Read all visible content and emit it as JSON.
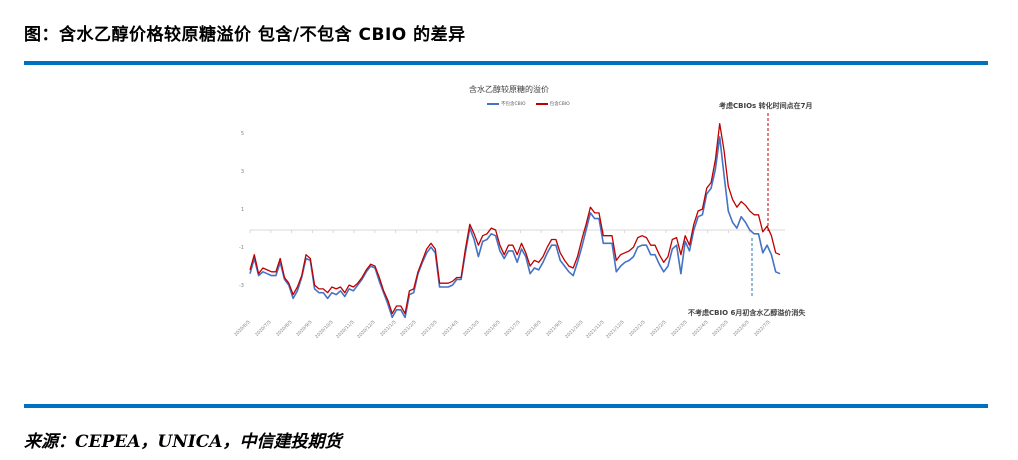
{
  "figure": {
    "title": "图：含水乙醇价格较原糖溢价  包含/不包含 CBIO 的差异",
    "source": "来源：CEPEA，UNICA，中信建投期货",
    "accent_color": "#0070c0"
  },
  "chart_data": {
    "type": "line",
    "title": "含水乙醇较原糖的溢价",
    "xlabel": "",
    "ylabel": "",
    "ylim": [
      -4.5,
      6
    ],
    "y_ticks": [
      "5",
      "3",
      "1",
      "-1",
      "-3"
    ],
    "y_tick_values": [
      5,
      3,
      1,
      -1,
      -3
    ],
    "grid": false,
    "legend_position": "top",
    "x_tick_labels": [
      "2020/6/5",
      "2020/7/5",
      "2020/8/5",
      "2020/9/5",
      "2020/10/5",
      "2020/11/5",
      "2020/12/5",
      "2021/1/5",
      "2021/2/5",
      "2021/3/5",
      "2021/4/5",
      "2021/5/5",
      "2021/6/5",
      "2021/7/5",
      "2021/8/5",
      "2021/9/5",
      "2021/10/5",
      "2021/11/5",
      "2021/12/5",
      "2022/1/5",
      "2022/2/5",
      "2022/3/5",
      "2022/4/5",
      "2022/5/5",
      "2022/6/5",
      "2022/7/5"
    ],
    "series": [
      {
        "name": "不包含CBIO",
        "color": "#4472c4",
        "values": [
          -2.3,
          -1.5,
          -2.4,
          -2.2,
          -2.3,
          -2.4,
          -2.4,
          -1.7,
          -2.6,
          -2.9,
          -3.6,
          -3.2,
          -2.5,
          -1.5,
          -1.6,
          -3.1,
          -3.3,
          -3.3,
          -3.6,
          -3.3,
          -3.4,
          -3.2,
          -3.5,
          -3.1,
          -3.2,
          -2.9,
          -2.6,
          -2.2,
          -1.9,
          -2.0,
          -2.7,
          -3.3,
          -3.9,
          -4.6,
          -4.2,
          -4.2,
          -4.6,
          -3.4,
          -3.3,
          -2.3,
          -1.7,
          -1.2,
          -0.9,
          -1.2,
          -3.0,
          -3.0,
          -3.0,
          -2.9,
          -2.6,
          -2.6,
          -1.2,
          0.1,
          -0.5,
          -1.4,
          -0.6,
          -0.5,
          -0.2,
          -0.3,
          -1.1,
          -1.5,
          -1.1,
          -1.1,
          -1.7,
          -1.0,
          -1.4,
          -2.3,
          -2.0,
          -2.1,
          -1.7,
          -1.2,
          -0.8,
          -0.8,
          -1.6,
          -1.9,
          -2.2,
          -2.4,
          -1.7,
          -0.9,
          0.0,
          0.9,
          0.6,
          0.6,
          -0.7,
          -0.7,
          -0.7,
          -2.2,
          -1.9,
          -1.7,
          -1.6,
          -1.4,
          -0.9,
          -0.8,
          -0.8,
          -1.3,
          -1.3,
          -1.8,
          -2.2,
          -1.9,
          -1.0,
          -0.8,
          -2.3,
          -0.6,
          -1.1,
          0.0,
          0.7,
          0.8,
          1.9,
          2.2,
          3.2,
          4.9,
          2.9,
          1.0,
          0.4,
          0.1,
          0.7,
          0.4,
          0.0,
          -0.2,
          -0.2,
          -1.2,
          -0.8,
          -1.3,
          -2.2,
          -2.3
        ]
      },
      {
        "name": "包含CBIO",
        "color": "#c00000",
        "values": [
          -2.1,
          -1.3,
          -2.3,
          -2.0,
          -2.1,
          -2.2,
          -2.2,
          -1.5,
          -2.5,
          -2.8,
          -3.4,
          -3.0,
          -2.4,
          -1.3,
          -1.5,
          -2.9,
          -3.1,
          -3.1,
          -3.3,
          -3.0,
          -3.1,
          -3.0,
          -3.3,
          -2.9,
          -3.0,
          -2.8,
          -2.5,
          -2.1,
          -1.8,
          -1.9,
          -2.5,
          -3.2,
          -3.7,
          -4.4,
          -4.0,
          -4.0,
          -4.4,
          -3.2,
          -3.1,
          -2.2,
          -1.6,
          -1.0,
          -0.7,
          -1.0,
          -2.8,
          -2.8,
          -2.8,
          -2.7,
          -2.5,
          -2.5,
          -1.0,
          0.3,
          -0.2,
          -0.8,
          -0.3,
          -0.2,
          0.1,
          0.0,
          -0.8,
          -1.3,
          -0.8,
          -0.8,
          -1.3,
          -0.7,
          -1.2,
          -1.9,
          -1.6,
          -1.7,
          -1.4,
          -0.9,
          -0.5,
          -0.5,
          -1.2,
          -1.6,
          -1.9,
          -2.0,
          -1.4,
          -0.5,
          0.3,
          1.2,
          0.9,
          0.9,
          -0.3,
          -0.3,
          -0.3,
          -1.6,
          -1.3,
          -1.2,
          -1.1,
          -0.9,
          -0.4,
          -0.3,
          -0.4,
          -0.8,
          -0.8,
          -1.3,
          -1.7,
          -1.4,
          -0.5,
          -0.4,
          -1.3,
          -0.3,
          -0.8,
          0.3,
          1.0,
          1.1,
          2.2,
          2.5,
          3.7,
          5.6,
          4.2,
          2.3,
          1.6,
          1.2,
          1.5,
          1.3,
          1.0,
          0.8,
          0.8,
          -0.1,
          0.2,
          -0.3,
          -1.2,
          -1.3
        ]
      }
    ],
    "annotations": [
      {
        "text": "考虑CBIOs 转化时间点在7月",
        "color": "#c00000",
        "style": "dashed-vertical"
      },
      {
        "text": "不考虑CBIO 6月初含水乙醇溢价消失",
        "color": "#2e75b6",
        "style": "dashed-vertical"
      }
    ]
  }
}
